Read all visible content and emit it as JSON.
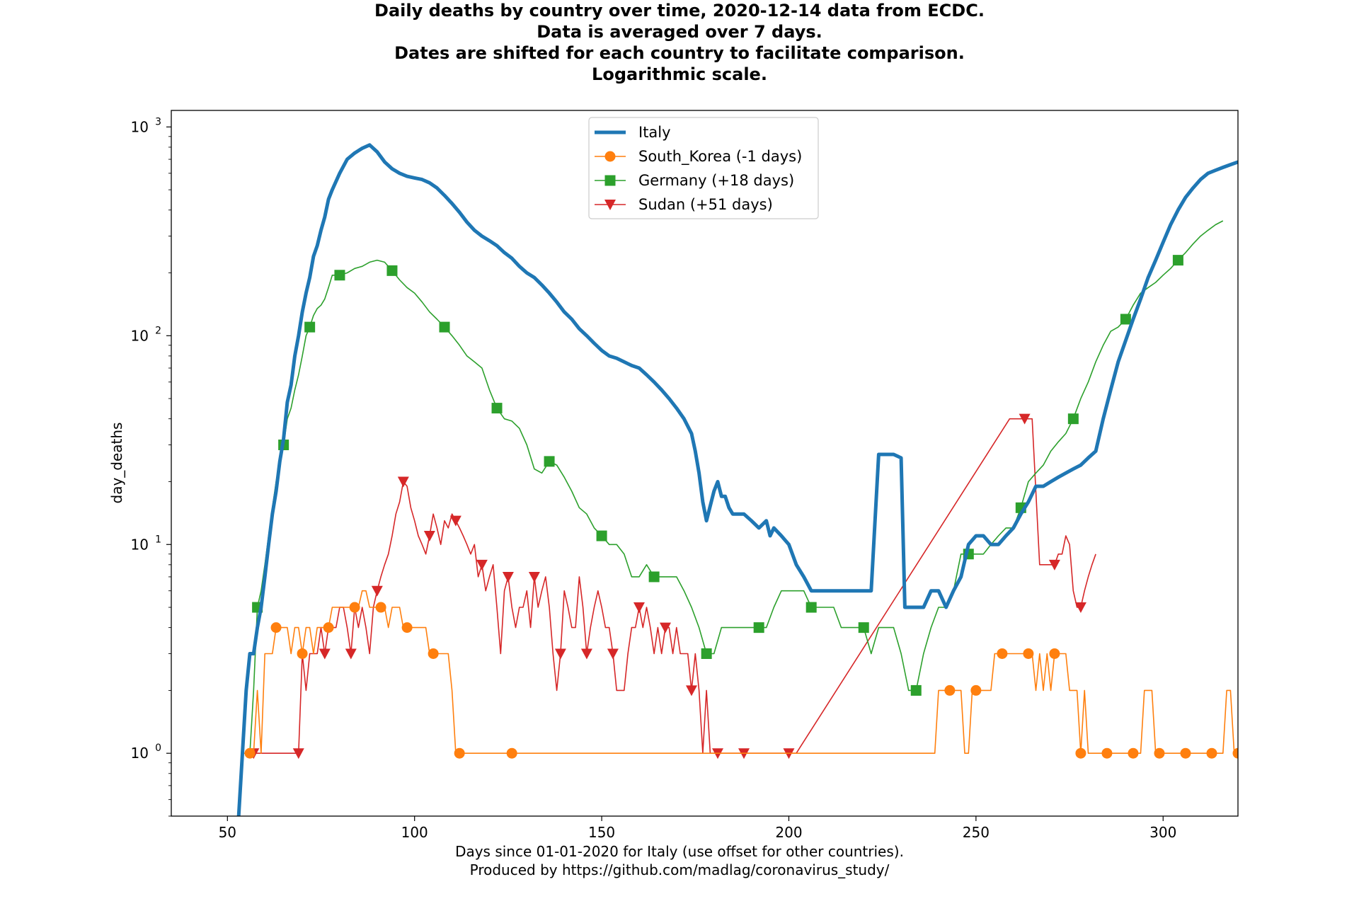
{
  "title_lines": [
    "Daily deaths by country over time, 2020-12-14 data from ECDC.",
    "Data is averaged over 7 days.",
    "Dates are shifted for each country to facilitate comparison.",
    "Logarithmic scale."
  ],
  "xlabel_lines": [
    "Days since 01-01-2020 for Italy (use offset for other countries).",
    "Produced by https://github.com/madlag/coronavirus_study/"
  ],
  "chart_data": {
    "type": "line",
    "title": "Daily deaths by country over time, 2020-12-14 data from ECDC. Data is averaged over 7 days. Dates are shifted for each country to facilitate comparison. Logarithmic scale.",
    "xlabel": "Days since 01-01-2020 for Italy (use offset for other countries).",
    "ylabel": "day_deaths",
    "yscale": "log",
    "xlim": [
      35,
      320
    ],
    "ylim": [
      0.5,
      1200
    ],
    "xticks": [
      50,
      100,
      150,
      200,
      250,
      300
    ],
    "yticks": [
      {
        "value": 1,
        "base": "10",
        "exp": "0"
      },
      {
        "value": 10,
        "base": "10",
        "exp": "1"
      },
      {
        "value": 100,
        "base": "10",
        "exp": "2"
      },
      {
        "value": 1000,
        "base": "10",
        "exp": "3"
      }
    ],
    "legend_position": "top-center",
    "series": [
      {
        "name": "Italy",
        "color": "#1f77b4",
        "marker": "none",
        "x": [
          53,
          54,
          55,
          56,
          57,
          58,
          59,
          60,
          61,
          62,
          63,
          64,
          65,
          66,
          67,
          68,
          69,
          70,
          71,
          72,
          73,
          74,
          75,
          76,
          77,
          78,
          80,
          82,
          84,
          86,
          88,
          90,
          92,
          94,
          96,
          98,
          100,
          102,
          104,
          106,
          108,
          110,
          112,
          114,
          116,
          118,
          120,
          122,
          124,
          126,
          128,
          130,
          132,
          134,
          136,
          138,
          140,
          142,
          144,
          146,
          148,
          150,
          152,
          154,
          156,
          158,
          160,
          162,
          164,
          166,
          168,
          170,
          172,
          174,
          175,
          176,
          177,
          178,
          180,
          181,
          182,
          183,
          184,
          185,
          186,
          188,
          190,
          192,
          194,
          195,
          196,
          198,
          200,
          202,
          204,
          206,
          208,
          210,
          212,
          214,
          216,
          218,
          220,
          222,
          224,
          225,
          226,
          228,
          230,
          231,
          232,
          234,
          236,
          238,
          240,
          242,
          244,
          246,
          248,
          250,
          252,
          254,
          256,
          258,
          260,
          262,
          264,
          266,
          268,
          270,
          272,
          274,
          276,
          278,
          280,
          282,
          284,
          286,
          288,
          290,
          292,
          294,
          296,
          298,
          300,
          302,
          304,
          306,
          308,
          310,
          312,
          314,
          316,
          318,
          320
        ],
        "values": [
          0.5,
          1,
          2,
          3,
          3,
          4,
          5,
          7,
          10,
          14,
          18,
          25,
          32,
          48,
          58,
          80,
          100,
          130,
          160,
          190,
          240,
          270,
          320,
          370,
          450,
          500,
          600,
          700,
          750,
          790,
          820,
          760,
          680,
          630,
          600,
          580,
          570,
          560,
          540,
          510,
          470,
          430,
          390,
          350,
          320,
          300,
          285,
          270,
          250,
          235,
          215,
          200,
          190,
          175,
          160,
          145,
          130,
          120,
          108,
          100,
          92,
          85,
          80,
          78,
          75,
          72,
          70,
          65,
          60,
          55,
          50,
          45,
          40,
          34,
          28,
          22,
          16,
          13,
          18,
          20,
          17,
          17,
          15,
          14,
          14,
          14,
          13,
          12,
          13,
          11,
          12,
          11,
          10,
          8,
          7,
          6,
          6,
          6,
          6,
          6,
          6,
          6,
          6,
          6,
          27,
          27,
          27,
          27,
          26,
          5,
          5,
          5,
          5,
          6,
          6,
          5,
          6,
          7,
          10,
          11,
          11,
          10,
          10,
          11,
          12,
          14,
          16,
          19,
          19,
          20,
          21,
          22,
          23,
          24,
          26,
          28,
          40,
          55,
          75,
          95,
          120,
          150,
          190,
          230,
          280,
          340,
          400,
          460,
          510,
          560,
          600,
          620,
          640,
          660,
          680
        ],
        "width": 5
      },
      {
        "name": "South_Korea (-1 days)",
        "color": "#ff7f0e",
        "marker": "circle",
        "x": [
          54,
          55,
          56,
          57,
          58,
          59,
          60,
          61,
          62,
          63,
          64,
          65,
          66,
          67,
          68,
          69,
          70,
          71,
          72,
          73,
          74,
          75,
          76,
          77,
          78,
          79,
          80,
          81,
          82,
          83,
          84,
          85,
          86,
          87,
          88,
          89,
          90,
          91,
          92,
          93,
          94,
          95,
          96,
          97,
          98,
          99,
          100,
          101,
          102,
          103,
          104,
          105,
          106,
          107,
          108,
          109,
          110,
          111,
          112,
          114,
          116,
          118,
          120,
          122,
          124,
          126,
          237,
          238,
          239,
          240,
          241,
          242,
          243,
          244,
          245,
          246,
          247,
          248,
          249,
          250,
          251,
          252,
          253,
          254,
          255,
          256,
          257,
          258,
          259,
          260,
          261,
          262,
          263,
          264,
          265,
          266,
          267,
          268,
          269,
          270,
          271,
          272,
          273,
          274,
          275,
          276,
          277,
          278,
          279,
          280,
          281,
          282,
          283,
          284,
          285,
          286,
          287,
          288,
          289,
          290,
          291,
          292,
          293,
          294,
          295,
          296,
          297,
          298,
          299,
          300,
          301,
          302,
          303,
          304,
          305,
          306,
          307,
          308,
          309,
          310,
          311,
          312,
          313,
          314,
          315,
          316,
          317,
          318,
          319,
          320
        ],
        "values": [
          1,
          1,
          1,
          1,
          2,
          1,
          3,
          3,
          3,
          4,
          4,
          4,
          4,
          3,
          4,
          4,
          3,
          4,
          4,
          3,
          4,
          4,
          4,
          4,
          5,
          5,
          5,
          5,
          5,
          5,
          5,
          5,
          6,
          6,
          5,
          5,
          5,
          5,
          5,
          4,
          5,
          5,
          5,
          4,
          4,
          4,
          4,
          4,
          4,
          4,
          3,
          3,
          3,
          3,
          3,
          3,
          2,
          1,
          1,
          1,
          1,
          1,
          1,
          1,
          1,
          1,
          1,
          1,
          1,
          2,
          2,
          2,
          2,
          2,
          2,
          2,
          1,
          1,
          2,
          2,
          2,
          2,
          2,
          2,
          3,
          3,
          3,
          3,
          3,
          3,
          3,
          3,
          3,
          3,
          3,
          2,
          3,
          2,
          3,
          2,
          3,
          3,
          3,
          3,
          2,
          2,
          2,
          1,
          2,
          1,
          1,
          1,
          1,
          1,
          1,
          1,
          1,
          1,
          1,
          1,
          1,
          1,
          1,
          1,
          2,
          2,
          2,
          1,
          1,
          1,
          1,
          1,
          1,
          1,
          1,
          1,
          1,
          1,
          1,
          1,
          1,
          1,
          1,
          1,
          1,
          1,
          2,
          2,
          1,
          1
        ],
        "width": 1.6
      },
      {
        "name": "Germany (+18 days)",
        "color": "#2ca02c",
        "marker": "square",
        "x": [
          56,
          57,
          58,
          59,
          60,
          61,
          62,
          63,
          64,
          65,
          66,
          67,
          68,
          69,
          70,
          71,
          72,
          73,
          74,
          75,
          76,
          77,
          78,
          80,
          82,
          84,
          86,
          88,
          90,
          92,
          94,
          96,
          98,
          100,
          102,
          104,
          106,
          108,
          110,
          112,
          114,
          116,
          118,
          120,
          122,
          124,
          126,
          128,
          130,
          132,
          134,
          136,
          138,
          140,
          142,
          144,
          146,
          148,
          150,
          152,
          154,
          156,
          158,
          160,
          162,
          164,
          166,
          168,
          170,
          172,
          174,
          176,
          178,
          180,
          182,
          184,
          186,
          188,
          190,
          192,
          194,
          196,
          198,
          200,
          202,
          204,
          206,
          208,
          210,
          212,
          214,
          216,
          218,
          220,
          222,
          224,
          226,
          228,
          230,
          232,
          234,
          236,
          238,
          240,
          242,
          244,
          246,
          248,
          250,
          252,
          254,
          256,
          258,
          260,
          262,
          264,
          266,
          268,
          270,
          272,
          274,
          276,
          278,
          280,
          282,
          284,
          286,
          288,
          290,
          292,
          294,
          296,
          298,
          300,
          302,
          304,
          306,
          308,
          310,
          312,
          314,
          316
        ],
        "values": [
          1,
          2,
          5,
          6,
          8,
          11,
          15,
          20,
          25,
          30,
          40,
          45,
          55,
          65,
          80,
          100,
          110,
          125,
          135,
          140,
          150,
          170,
          195,
          195,
          200,
          210,
          215,
          225,
          230,
          225,
          205,
          185,
          170,
          160,
          145,
          130,
          120,
          110,
          100,
          90,
          80,
          75,
          70,
          55,
          45,
          40,
          39,
          36,
          30,
          23,
          22,
          25,
          24,
          21,
          18,
          15,
          14,
          12,
          11,
          10,
          10,
          9,
          7,
          7,
          8,
          7,
          7,
          7,
          7,
          6,
          5,
          4,
          3,
          3,
          4,
          4,
          4,
          4,
          4,
          4,
          4,
          5,
          6,
          6,
          6,
          6,
          5,
          5,
          5,
          5,
          4,
          4,
          4,
          4,
          3,
          4,
          4,
          4,
          3,
          2,
          2,
          3,
          4,
          5,
          5,
          6,
          9,
          9,
          9,
          9,
          10,
          11,
          12,
          12,
          15,
          20,
          22,
          24,
          28,
          31,
          34,
          40,
          50,
          60,
          75,
          90,
          105,
          110,
          120,
          140,
          160,
          170,
          180,
          195,
          210,
          230,
          250,
          275,
          300,
          320,
          340,
          355
        ],
        "width": 1.6
      },
      {
        "name": "Sudan (+51 days)",
        "color": "#d62728",
        "marker": "triangle-down",
        "x": [
          55,
          56,
          57,
          58,
          60,
          62,
          64,
          66,
          68,
          69,
          70,
          71,
          72,
          73,
          74,
          75,
          76,
          77,
          78,
          79,
          80,
          81,
          82,
          83,
          84,
          85,
          86,
          87,
          88,
          89,
          90,
          91,
          92,
          93,
          94,
          95,
          96,
          97,
          98,
          99,
          100,
          101,
          102,
          103,
          104,
          105,
          106,
          107,
          108,
          109,
          110,
          111,
          112,
          113,
          114,
          115,
          116,
          117,
          118,
          119,
          120,
          121,
          122,
          123,
          124,
          125,
          126,
          127,
          128,
          129,
          130,
          131,
          132,
          133,
          134,
          135,
          136,
          137,
          138,
          139,
          140,
          141,
          142,
          143,
          144,
          145,
          146,
          147,
          148,
          149,
          150,
          151,
          152,
          153,
          154,
          155,
          156,
          157,
          158,
          159,
          160,
          161,
          162,
          163,
          164,
          165,
          166,
          167,
          168,
          169,
          170,
          171,
          172,
          173,
          174,
          175,
          176,
          177,
          178,
          179,
          180,
          181,
          182,
          183,
          184,
          185,
          186,
          187,
          188,
          189,
          190,
          196,
          197,
          198,
          199,
          200,
          201,
          202,
          259,
          260,
          261,
          262,
          263,
          264,
          265,
          267,
          268,
          269,
          270,
          271,
          272,
          273,
          274,
          275,
          276,
          277,
          278,
          279,
          280,
          281,
          282
        ],
        "values": [
          1,
          1,
          1,
          1,
          1,
          1,
          1,
          1,
          1,
          1,
          3,
          2,
          3,
          3,
          3,
          4,
          3,
          4,
          4,
          4,
          5,
          5,
          4,
          3,
          5,
          4,
          5,
          4,
          3,
          5,
          6,
          7,
          8,
          9,
          11,
          14,
          16,
          20,
          19,
          15,
          13,
          11,
          10,
          9,
          11,
          14,
          12,
          10,
          13,
          12,
          14,
          13,
          12,
          11,
          10,
          9,
          10,
          7,
          8,
          6,
          7,
          8,
          5,
          3,
          6,
          7,
          5,
          4,
          5,
          5,
          6,
          4,
          7,
          5,
          6,
          7,
          5,
          3,
          2,
          3,
          6,
          5,
          4,
          4,
          7,
          5,
          3,
          4,
          5,
          6,
          5,
          4,
          4,
          3,
          2,
          2,
          2,
          3,
          4,
          4,
          5,
          4,
          5,
          4,
          3,
          4,
          3,
          4,
          4,
          3,
          4,
          3,
          3,
          3,
          2,
          3,
          2,
          1,
          2,
          1,
          1,
          1,
          1,
          1,
          1,
          1,
          1,
          1,
          1,
          1,
          1,
          1,
          1,
          1,
          1,
          1,
          1,
          1,
          40,
          40,
          40,
          40,
          40,
          40,
          40,
          8,
          8,
          8,
          8,
          8,
          9,
          9,
          11,
          10,
          6,
          5,
          5,
          6,
          7,
          8,
          9
        ],
        "width": 1.6
      }
    ]
  }
}
